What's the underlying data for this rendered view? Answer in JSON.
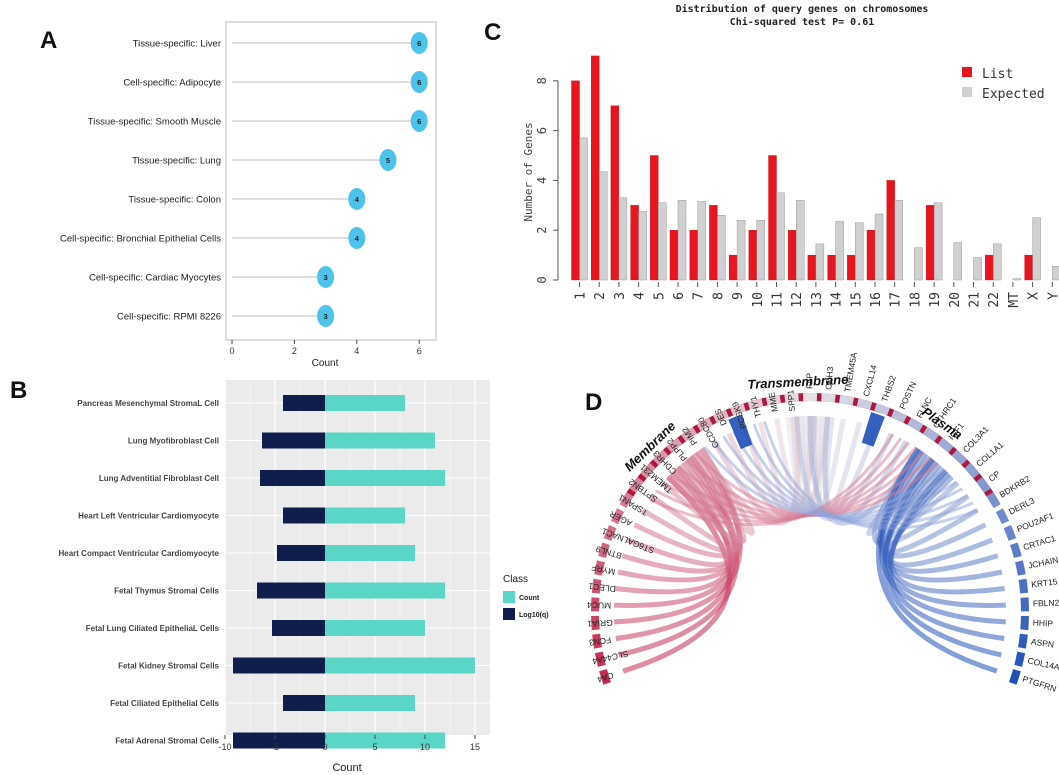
{
  "panels": {
    "a": {
      "letter": "A"
    },
    "b": {
      "letter": "B"
    },
    "c": {
      "letter": "C"
    },
    "d": {
      "letter": "D"
    }
  },
  "chart_data": [
    {
      "id": "A",
      "type": "scatter",
      "subtype": "lollipop",
      "title": "",
      "xlabel": "Count",
      "ylabel": "",
      "xlim": [
        0,
        6.8
      ],
      "xticks": [
        0,
        2,
        4,
        6
      ],
      "categories": [
        "Tissue-specific: Liver",
        "Cell-specific: Adipocyte",
        "Tissue-specific: Smooth Muscle",
        "Tissue-specific: Lung",
        "Tissue-specific: Colon",
        "Cell-specific: Bronchial Epithelial Cells",
        "Cell-specific: Cardiac Myocytes",
        "Cell-specific: RPMI 8226"
      ],
      "values": [
        6,
        6,
        6,
        5,
        4,
        4,
        3,
        3
      ],
      "colors": {
        "dot": "#4cc3ea",
        "line": "#cccccc",
        "frame": "#bdbdbd"
      }
    },
    {
      "id": "B",
      "type": "bar",
      "orientation": "horizontal",
      "xlabel": "Count",
      "xlim": [
        -10,
        16
      ],
      "xticks": [
        -10,
        -5,
        0,
        5,
        10,
        15
      ],
      "categories": [
        "Pancreas Mesenchymal StromaL Cell",
        "Lung Myofibroblast Cell",
        "Lung Adventitial Fibroblast Cell",
        "Heart Left Ventricular Cardiomyocyte",
        "Heart Compact Ventricular Cardiomyocyte",
        "Fetal Thymus Stromal Cells",
        "Fetal Lung Ciliated EpitheliaL Cells",
        "Fetal Kidney Stromal Cells",
        "Fetal Ciliated Epithelial Cells",
        "Fetal Adrenal Stromal Cells"
      ],
      "series": [
        {
          "name": "Count",
          "color": "#5ad6c6",
          "values": [
            8,
            11,
            12,
            8,
            9,
            12,
            10,
            15,
            9,
            12
          ]
        },
        {
          "name": "Log10(q)",
          "color": "#0f1e4d",
          "values": [
            -4.2,
            -6.3,
            -6.5,
            -4.2,
            -4.8,
            -6.8,
            -5.3,
            -9.2,
            -4.2,
            -9.2
          ]
        }
      ],
      "legend": {
        "title": "Class",
        "position": "right"
      },
      "colors": {
        "panel_bg": "#ebebeb",
        "grid": "#ffffff"
      }
    },
    {
      "id": "C",
      "type": "bar",
      "title": "Distribution of query genes on chromosomes",
      "subtitle": "Chi-squared test P= 0.61",
      "xlabel": "",
      "ylabel": "Number of Genes",
      "ylim": [
        0,
        9
      ],
      "yticks": [
        0,
        2,
        4,
        6,
        8
      ],
      "categories": [
        "1",
        "2",
        "3",
        "4",
        "5",
        "6",
        "7",
        "8",
        "9",
        "10",
        "11",
        "12",
        "13",
        "14",
        "15",
        "16",
        "17",
        "18",
        "19",
        "20",
        "21",
        "22",
        "MT",
        "X",
        "Y"
      ],
      "series": [
        {
          "name": "List",
          "color": "#e8141e",
          "values": [
            8,
            9,
            7,
            3,
            5,
            2,
            2,
            3,
            1,
            2,
            5,
            2,
            1,
            1,
            1,
            2,
            4,
            0,
            3,
            0,
            0,
            1,
            0,
            1,
            0
          ]
        },
        {
          "name": "Expected",
          "color": "#d0d0d0",
          "values": [
            5.7,
            4.35,
            3.3,
            2.75,
            3.1,
            3.2,
            3.15,
            2.6,
            2.4,
            2.4,
            3.5,
            3.2,
            1.45,
            2.35,
            2.3,
            2.65,
            3.2,
            1.3,
            3.1,
            1.5,
            0.9,
            1.45,
            0.05,
            2.5,
            0.55
          ]
        }
      ],
      "legend": {
        "position": "top-right"
      }
    },
    {
      "id": "D",
      "type": "chord",
      "groups": [
        "Membrane",
        "Transmembrane",
        "Plasma"
      ],
      "genes": [
        "CA4",
        "SLC44A4",
        "FCN3",
        "GRIA1",
        "MUC4",
        "DLEC1",
        "MYRF",
        "BTNL9",
        "ST6GALNAC1",
        "AGER",
        "TSPAN1",
        "SPTBN2",
        "TMEM231",
        "CDHR3",
        "PLPP2",
        "PIM2",
        "CCDC80",
        "DES",
        "PCSK9",
        "THY1",
        "MME",
        "SPP1",
        "FAP",
        "CDH3",
        "TMEM45A",
        "CXCL14",
        "THBS2",
        "POSTN",
        "FLNC",
        "CTHRC1",
        "IGF1",
        "COL3A1",
        "COL1A1",
        "CP",
        "BDKRB2",
        "DERL3",
        "POU2AF1",
        "CRTAC1",
        "JCHAIN",
        "KRT15",
        "FBLN2",
        "HHIP",
        "ASPN",
        "COL14A1",
        "PTGFRN"
      ],
      "colors": {
        "group_arc": "#b0173f",
        "left_gene": "#c52a52",
        "mid_gene": "#d9d9d9",
        "right_gene": "#1f4fb8"
      }
    }
  ]
}
